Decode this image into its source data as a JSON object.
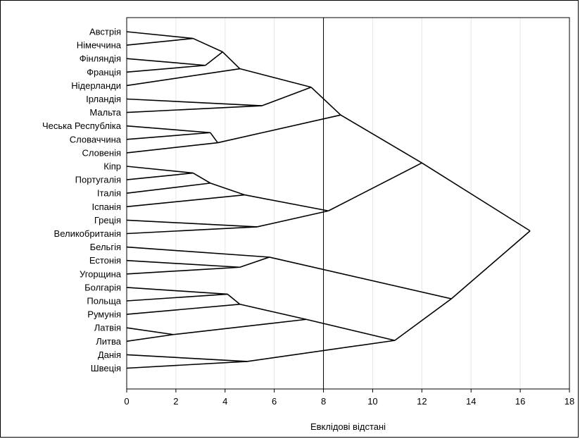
{
  "chart_data": {
    "type": "dendrogram",
    "xlabel": "Евклідові відстані",
    "xlim": [
      0,
      18
    ],
    "xticks": [
      0,
      2,
      4,
      6,
      8,
      10,
      12,
      14,
      16,
      18
    ],
    "grid": "vertical",
    "reference_line_x": 8,
    "leaves": [
      "Австрія",
      "Німеччина",
      "Фінляндія",
      "Франція",
      "Нідерланди",
      "Ірландія",
      "Мальта",
      "Чеська Республіка",
      "Словаччина",
      "Словенія",
      "Кіпр",
      "Португалія",
      "Італія",
      "Іспанія",
      "Греція",
      "Великобританія",
      "Бельгія",
      "Естонія",
      "Угорщина",
      "Болгарія",
      "Польща",
      "Румунія",
      "Латвія",
      "Литва",
      "Данія",
      "Швеція"
    ],
    "merges": [
      {
        "a": 0,
        "b": 1,
        "height": 2.7
      },
      {
        "a": 2,
        "b": 3,
        "height": 3.2
      },
      {
        "a": "m0",
        "b": "m1",
        "height": 3.9
      },
      {
        "a": "m2",
        "b": 4,
        "height": 4.6
      },
      {
        "a": 5,
        "b": 6,
        "height": 5.5
      },
      {
        "a": "m3",
        "b": "m4",
        "height": 7.5
      },
      {
        "a": 7,
        "b": 8,
        "height": 3.4
      },
      {
        "a": "m6",
        "b": 9,
        "height": 3.7
      },
      {
        "a": "m5",
        "b": "m7",
        "height": 8.7
      },
      {
        "a": 10,
        "b": 11,
        "height": 2.7
      },
      {
        "a": "m9",
        "b": 12,
        "height": 3.4
      },
      {
        "a": "m10",
        "b": 13,
        "height": 4.8
      },
      {
        "a": 14,
        "b": 15,
        "height": 5.3
      },
      {
        "a": "m11",
        "b": "m12",
        "height": 8.2
      },
      {
        "a": "m8",
        "b": "m13",
        "height": 12.0
      },
      {
        "a": 17,
        "b": 18,
        "height": 4.6
      },
      {
        "a": 16,
        "b": "m15",
        "height": 5.8
      },
      {
        "a": 19,
        "b": 20,
        "height": 4.1
      },
      {
        "a": "m17",
        "b": 21,
        "height": 4.6
      },
      {
        "a": 22,
        "b": 23,
        "height": 1.9
      },
      {
        "a": "m18",
        "b": "m19",
        "height": 7.3
      },
      {
        "a": 24,
        "b": 25,
        "height": 4.9
      },
      {
        "a": "m20",
        "b": "m21",
        "height": 10.9
      },
      {
        "a": "m16",
        "b": "m22",
        "height": 13.2
      },
      {
        "a": "m14",
        "b": "m23",
        "height": 16.4
      }
    ]
  }
}
